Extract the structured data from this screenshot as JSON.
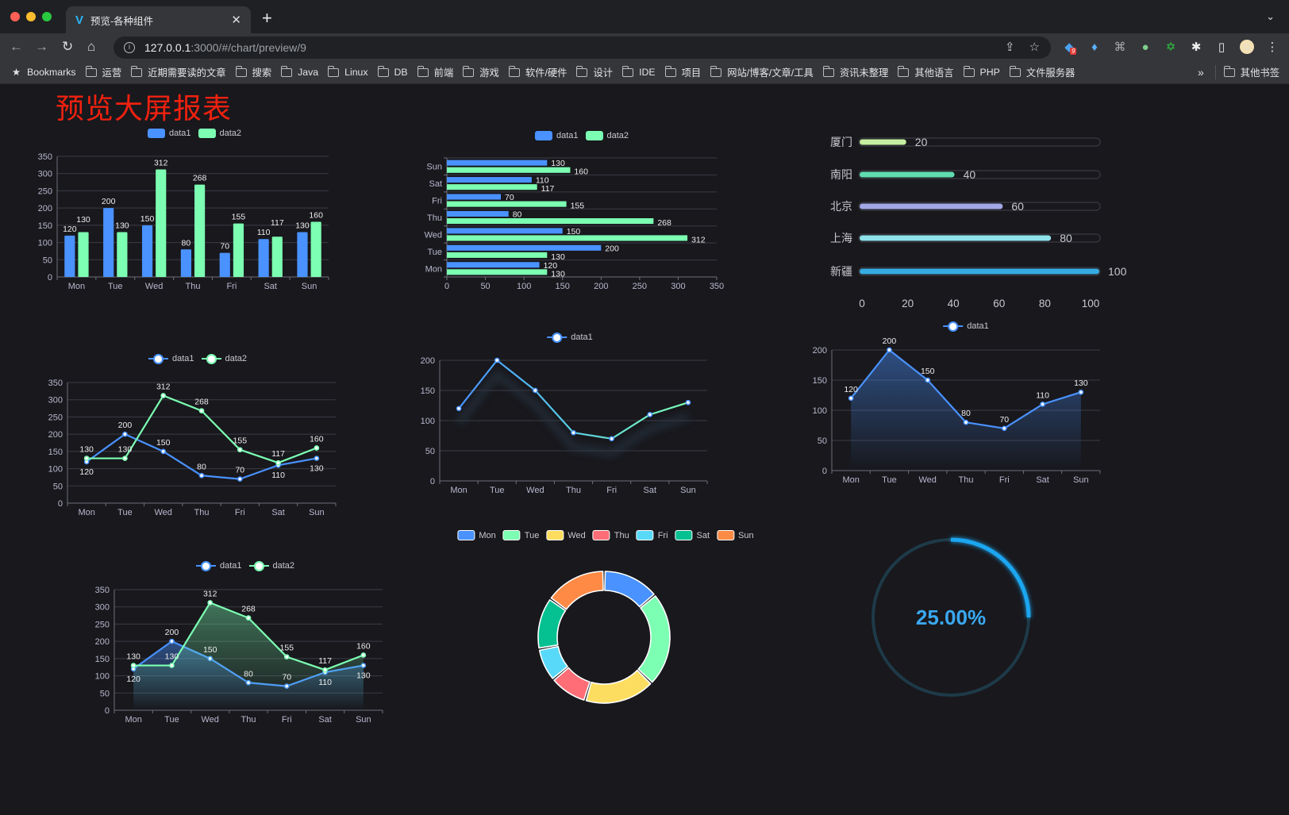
{
  "browser": {
    "tab_title": "预览-各种组件",
    "url_host": "127.0.0.1",
    "url_rest": ":3000/#/chart/preview/9",
    "extension_badge": "9",
    "bookmarks_label": "Bookmarks",
    "bookmark_folders": [
      "运营",
      "近期需要读的文章",
      "搜索",
      "Java",
      "Linux",
      "DB",
      "前端",
      "游戏",
      "软件/硬件",
      "设计",
      "IDE",
      "项目",
      "网站/博客/文章/工具",
      "资讯未整理",
      "其他语言",
      "PHP",
      "文件服务器"
    ],
    "more": "»",
    "other_bookmarks": "其他书签"
  },
  "page": {
    "title": "预览大屏报表"
  },
  "colors": {
    "series": [
      "#4992ff",
      "#7cffb2",
      "#fddd60",
      "#ff6e76",
      "#58d9f9",
      "#05c091",
      "#ff8a45"
    ],
    "title": "#f0210f",
    "background": "#18181d"
  },
  "chart_data": [
    {
      "type": "bar",
      "orientation": "vertical",
      "categories": [
        "Mon",
        "Tue",
        "Wed",
        "Thu",
        "Fri",
        "Sat",
        "Sun"
      ],
      "series": [
        {
          "name": "data1",
          "values": [
            120,
            200,
            150,
            80,
            70,
            110,
            130
          ]
        },
        {
          "name": "data2",
          "values": [
            130,
            130,
            312,
            268,
            155,
            117,
            160
          ]
        }
      ],
      "ylim": [
        0,
        350
      ],
      "ytick_step": 50,
      "data_labels": true,
      "grid": true,
      "legend": "top"
    },
    {
      "type": "bar",
      "orientation": "horizontal",
      "categories": [
        "Mon",
        "Tue",
        "Wed",
        "Thu",
        "Fri",
        "Sat",
        "Sun"
      ],
      "series": [
        {
          "name": "data1",
          "values": [
            120,
            200,
            150,
            80,
            70,
            110,
            130
          ]
        },
        {
          "name": "data2",
          "values": [
            130,
            130,
            312,
            268,
            155,
            117,
            160
          ]
        }
      ],
      "xlim": [
        0,
        350
      ],
      "xtick_step": 50,
      "data_labels": true,
      "grid": true,
      "legend": "top"
    },
    {
      "type": "bar",
      "orientation": "horizontal-progress",
      "categories": [
        "厦门",
        "南阳",
        "北京",
        "上海",
        "新疆"
      ],
      "values": [
        20,
        40,
        60,
        80,
        100
      ],
      "colors": [
        "#c6eea0",
        "#5fdcb0",
        "#a2a7e6",
        "#8fe2ea",
        "#36ace2"
      ],
      "xlim": [
        0,
        100
      ],
      "xtick_step": 20,
      "data_labels": true
    },
    {
      "type": "line",
      "categories": [
        "Mon",
        "Tue",
        "Wed",
        "Thu",
        "Fri",
        "Sat",
        "Sun"
      ],
      "series": [
        {
          "name": "data1",
          "values": [
            120,
            200,
            150,
            80,
            70,
            110,
            130
          ]
        },
        {
          "name": "data2",
          "values": [
            130,
            130,
            312,
            268,
            155,
            117,
            160
          ]
        }
      ],
      "ylim": [
        0,
        350
      ],
      "ytick_step": 50,
      "data_labels": true,
      "grid": true,
      "legend": "top"
    },
    {
      "type": "line",
      "categories": [
        "Mon",
        "Tue",
        "Wed",
        "Thu",
        "Fri",
        "Sat",
        "Sun"
      ],
      "series": [
        {
          "name": "data1",
          "values": [
            120,
            200,
            150,
            80,
            70,
            110,
            130
          ]
        }
      ],
      "ylim": [
        0,
        200
      ],
      "ytick_step": 50,
      "data_labels": false,
      "gradient_stroke": [
        "#4992ff",
        "#7cffb2"
      ],
      "grid": true,
      "legend": "top"
    },
    {
      "type": "area",
      "categories": [
        "Mon",
        "Tue",
        "Wed",
        "Thu",
        "Fri",
        "Sat",
        "Sun"
      ],
      "series": [
        {
          "name": "data1",
          "values": [
            120,
            200,
            150,
            80,
            70,
            110,
            130
          ]
        }
      ],
      "ylim": [
        0,
        200
      ],
      "ytick_step": 50,
      "data_labels": true,
      "grid": true,
      "legend": "top"
    },
    {
      "type": "area",
      "categories": [
        "Mon",
        "Tue",
        "Wed",
        "Thu",
        "Fri",
        "Sat",
        "Sun"
      ],
      "series": [
        {
          "name": "data1",
          "values": [
            120,
            200,
            150,
            80,
            70,
            110,
            130
          ]
        },
        {
          "name": "data2",
          "values": [
            130,
            130,
            312,
            268,
            155,
            117,
            160
          ]
        }
      ],
      "ylim": [
        0,
        350
      ],
      "ytick_step": 50,
      "data_labels": true,
      "grid": true,
      "legend": "top"
    },
    {
      "type": "pie",
      "donut": true,
      "categories": [
        "Mon",
        "Tue",
        "Wed",
        "Thu",
        "Fri",
        "Sat",
        "Sun"
      ],
      "values": [
        120,
        200,
        150,
        80,
        70,
        110,
        130
      ],
      "legend": "top"
    },
    {
      "type": "gauge",
      "value": 25,
      "max": 100,
      "label": "25.00%",
      "color": "#1ba6f0"
    }
  ]
}
